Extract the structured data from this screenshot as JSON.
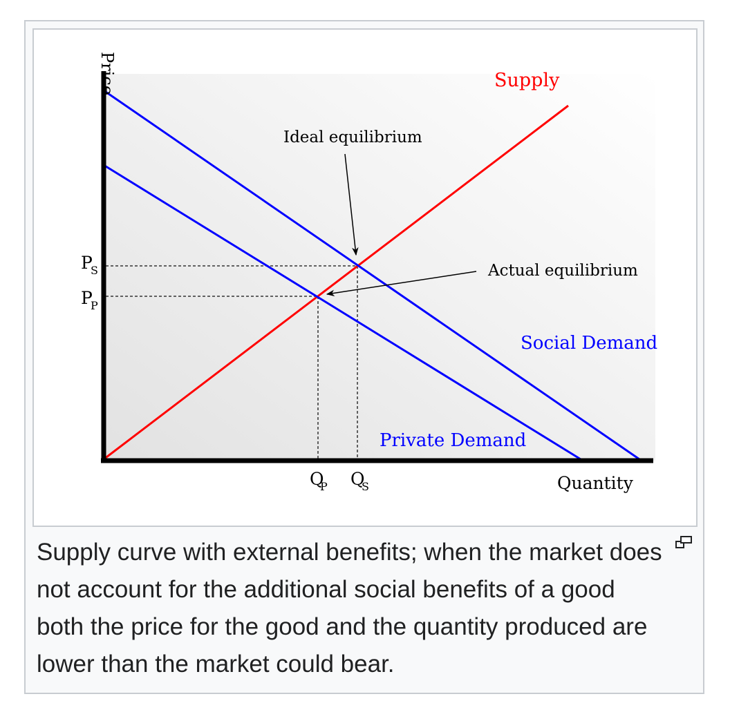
{
  "figure": {
    "axis_labels": {
      "price": "Price",
      "quantity": "Quantity"
    },
    "curves": {
      "supply": {
        "label": "Supply",
        "color": "#ff0000"
      },
      "social_demand": {
        "label": "Social Demand",
        "color": "#0000ff"
      },
      "private_demand": {
        "label": "Private Demand",
        "color": "#0000ff"
      }
    },
    "annotations": {
      "ideal_equilibrium": "Ideal equilibrium",
      "actual_equilibrium": "Actual equilibrium"
    },
    "ticks": {
      "p_s": {
        "main": "P",
        "sub": "S"
      },
      "p_p": {
        "main": "P",
        "sub": "P"
      },
      "q_p": {
        "main": "Q",
        "sub": "P"
      },
      "q_s": {
        "main": "Q",
        "sub": "S"
      }
    }
  },
  "caption": {
    "text": "Supply curve with external benefits; when the market does not account for the additional social benefits of a good both the price for the good and the quantity produced are lower than the market could bear.",
    "enlarge_icon": "magnify-clip-icon"
  }
}
